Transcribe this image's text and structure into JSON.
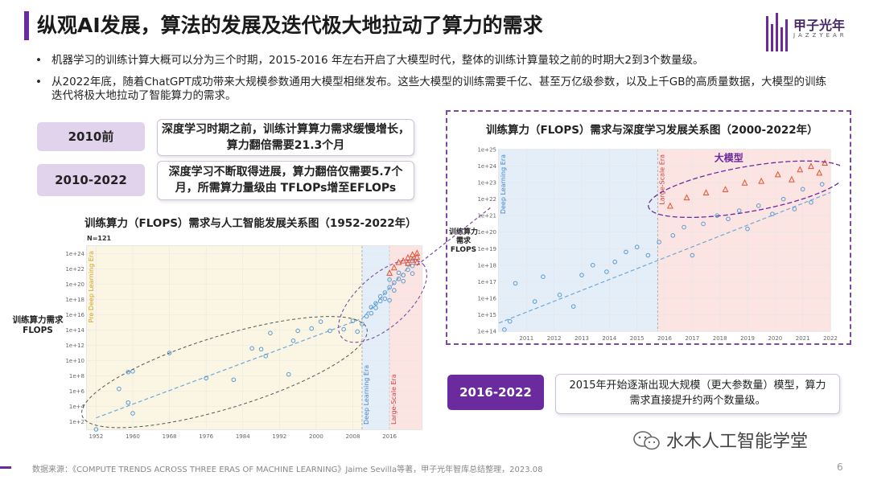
{
  "title": "纵观AI发展，算法的发展及迭代极大地拉动了算力的需求",
  "logo": {
    "text": "甲子光年",
    "sub": "JAZZYEAR"
  },
  "bullets": [
    "机器学习的训练计算大概可以分为三个时期，2015-2016 年左右开启了大模型时代，整体的训练计算量较之前的时期大2到3个数量级。",
    "从2022年底，随着ChatGPT成功带来大规模参数通用大模型相继发布。这些大模型的训练需要千亿、甚至万亿级参数，以及上千GB的高质量数据，大模型的训练",
    "迭代将极大地拉动了智能算力的需求。"
  ],
  "periods": [
    {
      "label": "2010前",
      "desc_l1": "深度学习时期之前，训练计算算力需求缓慢增长，",
      "desc_l2": "算力翻倍需要21.3个月"
    },
    {
      "label": "2010-2022",
      "desc_l1": "深度学习不断取得进展，算力翻倍仅需要5.7个",
      "desc_l2": "月，所需算力量级由 TFLOPs增至EFLOPs"
    },
    {
      "label": "2016-2022",
      "desc_l1": "2015年开始逐渐出现大规模（更大参数量）模型，算力",
      "desc_l2": "需求直接提升约两个数量级。"
    }
  ],
  "chart_left_title": "训练算力（FLOPS）需求与人工智能发展关系图（1952-2022年）",
  "chart_right_title": "训练算力（FLOPS）需求与深度学习发展关系图（2000-2022年）",
  "ylabel_left_l1": "训练算力需求",
  "ylabel_left_l2": "FLOPS",
  "ylabel_right_l1": "训练算力",
  "ylabel_right_l2": "需求",
  "ylabel_right_l3": "FLOPS",
  "footer": "数据来源：《COMPUTE TRENDS ACROSS THREE ERAS OF MACHINE LEARNING》Jaime Sevilla等著，甲子光年智库总结整理，2023.08",
  "page_number": "6",
  "watermark": "水木人工智能学堂",
  "chart_data": [
    {
      "type": "scatter",
      "n_label": "N=121",
      "x_ticks": [
        "1952",
        "1960",
        "1968",
        "1976",
        "1984",
        "1992",
        "2000",
        "2008",
        "2016"
      ],
      "y_ticks": [
        "1e+24",
        "1e+22",
        "1e+20",
        "1e+18",
        "1e+16",
        "1e+14",
        "1e+12",
        "1e+10",
        "1e+8",
        "1e+6",
        "1e+4",
        "1e+2"
      ],
      "xlim": [
        1950,
        2023
      ],
      "ylim_log10": [
        1,
        25
      ],
      "eras": [
        {
          "name": "Pre Deep Learning Era",
          "range": [
            1950,
            2010
          ],
          "color": "#fbf6e4"
        },
        {
          "name": "Deep Learning Era",
          "range": [
            2010,
            2016
          ],
          "color": "#e3eef8"
        },
        {
          "name": "Large-Scale Era",
          "range": [
            2016,
            2023
          ],
          "color": "#fbe4e2"
        }
      ],
      "series": [
        {
          "color": "#5a9ad0",
          "points": [
            [
              1952,
              1
            ],
            [
              1957,
              6.3
            ],
            [
              1959,
              4.5
            ],
            [
              1959,
              8.5
            ],
            [
              1960,
              3.1
            ],
            [
              1960,
              8.6
            ],
            [
              1968,
              11
            ],
            [
              1976,
              7.7
            ],
            [
              1982,
              7.5
            ],
            [
              1986,
              11.6
            ],
            [
              1988,
              11.5
            ],
            [
              1989,
              10.6
            ],
            [
              1990,
              13.6
            ],
            [
              1994,
              8.2
            ],
            [
              1995,
              12.6
            ],
            [
              1996,
              13.9
            ],
            [
              1999,
              14.2
            ],
            [
              2001,
              15.1
            ],
            [
              2003,
              13.9
            ],
            [
              2006,
              14.1
            ],
            [
              2008,
              15.2
            ],
            [
              2009,
              13.8
            ],
            [
              2010,
              14.8
            ],
            [
              2011,
              15.8
            ],
            [
              2012,
              16.2
            ],
            [
              2012,
              17.0
            ],
            [
              2013,
              16.9
            ],
            [
              2013,
              17.5
            ],
            [
              2014,
              17.8
            ],
            [
              2014,
              18.4
            ],
            [
              2015,
              18.1
            ],
            [
              2015,
              18.9
            ],
            [
              2016,
              17.9
            ],
            [
              2016,
              19.6
            ],
            [
              2016,
              20.6
            ],
            [
              2017,
              19.2
            ],
            [
              2017,
              20.2
            ],
            [
              2018,
              20.7
            ],
            [
              2018,
              21.5
            ],
            [
              2019,
              20.4
            ],
            [
              2019,
              21.2
            ],
            [
              2020,
              21.9
            ],
            [
              2020,
              22.6
            ],
            [
              2021,
              21.4
            ],
            [
              2021,
              22.4
            ]
          ]
        },
        {
          "color": "#e85030",
          "points": [
            [
              2016,
              21.5
            ],
            [
              2017,
              22.2
            ],
            [
              2018,
              22.9
            ],
            [
              2019,
              23.1
            ],
            [
              2020,
              23.5
            ],
            [
              2020,
              22.8
            ],
            [
              2021,
              23.9
            ],
            [
              2021,
              23.2
            ],
            [
              2022,
              24.1
            ],
            [
              2022,
              23.6
            ],
            [
              2022,
              22.9
            ]
          ]
        }
      ],
      "trend": [
        [
          1952,
          2.5
        ],
        [
          2010,
          15.5
        ],
        [
          2022,
          23.5
        ]
      ]
    },
    {
      "type": "scatter",
      "annotation": "大模型",
      "x_ticks": [
        "2011",
        "2012",
        "2013",
        "2014",
        "2015",
        "2016",
        "2017",
        "2018",
        "2019",
        "2020",
        "2021",
        "2022"
      ],
      "y_ticks": [
        "1e+25",
        "1e+24",
        "1e+23",
        "1e+22",
        "1e+21",
        "1e+20",
        "1e+19",
        "1e+18",
        "1e+17",
        "1e+16",
        "1e+15",
        "1e+14"
      ],
      "xlim": [
        2010,
        2022
      ],
      "ylim_log10": [
        14,
        25
      ],
      "eras": [
        {
          "name": "Deep Learning Era",
          "range": [
            2010,
            2015.75
          ],
          "color": "#e3eef8"
        },
        {
          "name": "Large-Scale Era",
          "range": [
            2015.75,
            2022
          ],
          "color": "#fbe4e2"
        }
      ],
      "series": [
        {
          "color": "#5a9ad0",
          "points": [
            [
              2010.2,
              14.1
            ],
            [
              2010.4,
              14.6
            ],
            [
              2010.6,
              16.9
            ],
            [
              2011.3,
              15.8
            ],
            [
              2011.6,
              17.3
            ],
            [
              2012.2,
              16.2
            ],
            [
              2012.7,
              15.5
            ],
            [
              2013.0,
              17.4
            ],
            [
              2013.4,
              18.0
            ],
            [
              2013.9,
              17.6
            ],
            [
              2014.2,
              18.2
            ],
            [
              2014.6,
              18.8
            ],
            [
              2015.0,
              19.1
            ],
            [
              2015.4,
              18.6
            ],
            [
              2015.8,
              19.4
            ],
            [
              2016.3,
              19.8
            ],
            [
              2016.7,
              20.3
            ],
            [
              2017.0,
              18.6
            ],
            [
              2017.4,
              20.5
            ],
            [
              2017.9,
              21.0
            ],
            [
              2018.3,
              20.8
            ],
            [
              2018.7,
              21.3
            ],
            [
              2019.0,
              20.2
            ],
            [
              2019.4,
              21.6
            ],
            [
              2019.9,
              21.1
            ],
            [
              2020.3,
              22.0
            ],
            [
              2020.7,
              21.4
            ],
            [
              2021.0,
              22.6
            ],
            [
              2021.3,
              21.8
            ],
            [
              2021.7,
              22.9
            ]
          ]
        },
        {
          "color": "#e85030",
          "points": [
            [
              2016.2,
              21.6
            ],
            [
              2016.8,
              22.1
            ],
            [
              2017.5,
              22.4
            ],
            [
              2018.2,
              22.6
            ],
            [
              2018.9,
              23.0
            ],
            [
              2019.5,
              23.1
            ],
            [
              2020.1,
              23.5
            ],
            [
              2020.6,
              23.2
            ],
            [
              2020.9,
              23.8
            ],
            [
              2021.3,
              24.0
            ],
            [
              2021.6,
              23.6
            ],
            [
              2021.8,
              24.2
            ]
          ]
        }
      ],
      "trend": [
        [
          2010,
          14.5
        ],
        [
          2022,
          22.4
        ]
      ]
    }
  ]
}
